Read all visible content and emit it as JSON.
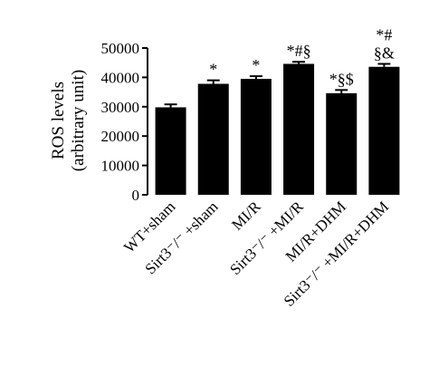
{
  "chart_data": {
    "type": "bar",
    "y_label": [
      "ROS levels",
      "(arbitrary unit)"
    ],
    "categories": [
      "WT+sham",
      "Sirt3⁻/⁻ +sham",
      "MI/R",
      "Sirt3⁻/⁻ +MI/R",
      "MI/R+DHM",
      "Sirt3⁻/⁻ +MI/R+DHM"
    ],
    "values": [
      29800,
      37800,
      39500,
      44600,
      34600,
      43600
    ],
    "errors": [
      1000,
      1200,
      900,
      700,
      1100,
      1000
    ],
    "annotations": [
      null,
      [
        "*"
      ],
      [
        "*"
      ],
      [
        "*#§"
      ],
      [
        "*§$"
      ],
      [
        "*#",
        "§&"
      ]
    ],
    "color": "#000000",
    "ylim": [
      0,
      50000
    ],
    "yticks": [
      0,
      10000,
      20000,
      30000,
      40000,
      50000
    ],
    "grid": false
  }
}
